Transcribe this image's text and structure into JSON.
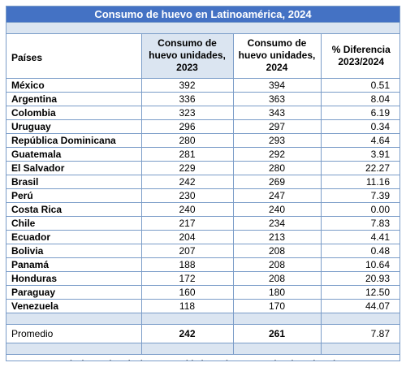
{
  "title": "Consumo de huevo en Latinoamérica, 2024",
  "headers": {
    "country": "Países",
    "y2023": "Consumo de huevo unidades, 2023",
    "y2024": "Consumo de huevo unidades, 2024",
    "diff": "% Diferencia 2023/2024"
  },
  "rows": [
    {
      "country": "México",
      "y2023": "392",
      "y2024": "394",
      "diff": "0.51"
    },
    {
      "country": "Argentina",
      "y2023": "336",
      "y2024": "363",
      "diff": "8.04"
    },
    {
      "country": "Colombia",
      "y2023": "323",
      "y2024": "343",
      "diff": "6.19"
    },
    {
      "country": "Uruguay",
      "y2023": "296",
      "y2024": "297",
      "diff": "0.34"
    },
    {
      "country": "República Dominicana",
      "y2023": "280",
      "y2024": "293",
      "diff": "4.64"
    },
    {
      "country": "Guatemala",
      "y2023": "281",
      "y2024": "292",
      "diff": "3.91"
    },
    {
      "country": "El Salvador",
      "y2023": "229",
      "y2024": "280",
      "diff": "22.27"
    },
    {
      "country": "Brasil",
      "y2023": "242",
      "y2024": "269",
      "diff": "11.16"
    },
    {
      "country": "Perú",
      "y2023": "230",
      "y2024": "247",
      "diff": "7.39"
    },
    {
      "country": "Costa Rica",
      "y2023": "240",
      "y2024": "240",
      "diff": "0.00"
    },
    {
      "country": "Chile",
      "y2023": "217",
      "y2024": "234",
      "diff": "7.83"
    },
    {
      "country": "Ecuador",
      "y2023": "204",
      "y2024": "213",
      "diff": "4.41"
    },
    {
      "country": "Bolivia",
      "y2023": "207",
      "y2024": "208",
      "diff": "0.48"
    },
    {
      "country": "Panamá",
      "y2023": "188",
      "y2024": "208",
      "diff": "10.64"
    },
    {
      "country": "Honduras",
      "y2023": "172",
      "y2024": "208",
      "diff": "20.93"
    },
    {
      "country": "Paraguay",
      "y2023": "160",
      "y2024": "180",
      "diff": "12.50"
    },
    {
      "country": "Venezuela",
      "y2023": "118",
      "y2024": "170",
      "diff": "44.07"
    }
  ],
  "average": {
    "label": "Promedio",
    "y2023": "242",
    "y2024": "261",
    "diff": "7.87"
  },
  "source": "Fuentes: Asociaciones de avicultores  y entidades gubernamentales de cada país."
}
